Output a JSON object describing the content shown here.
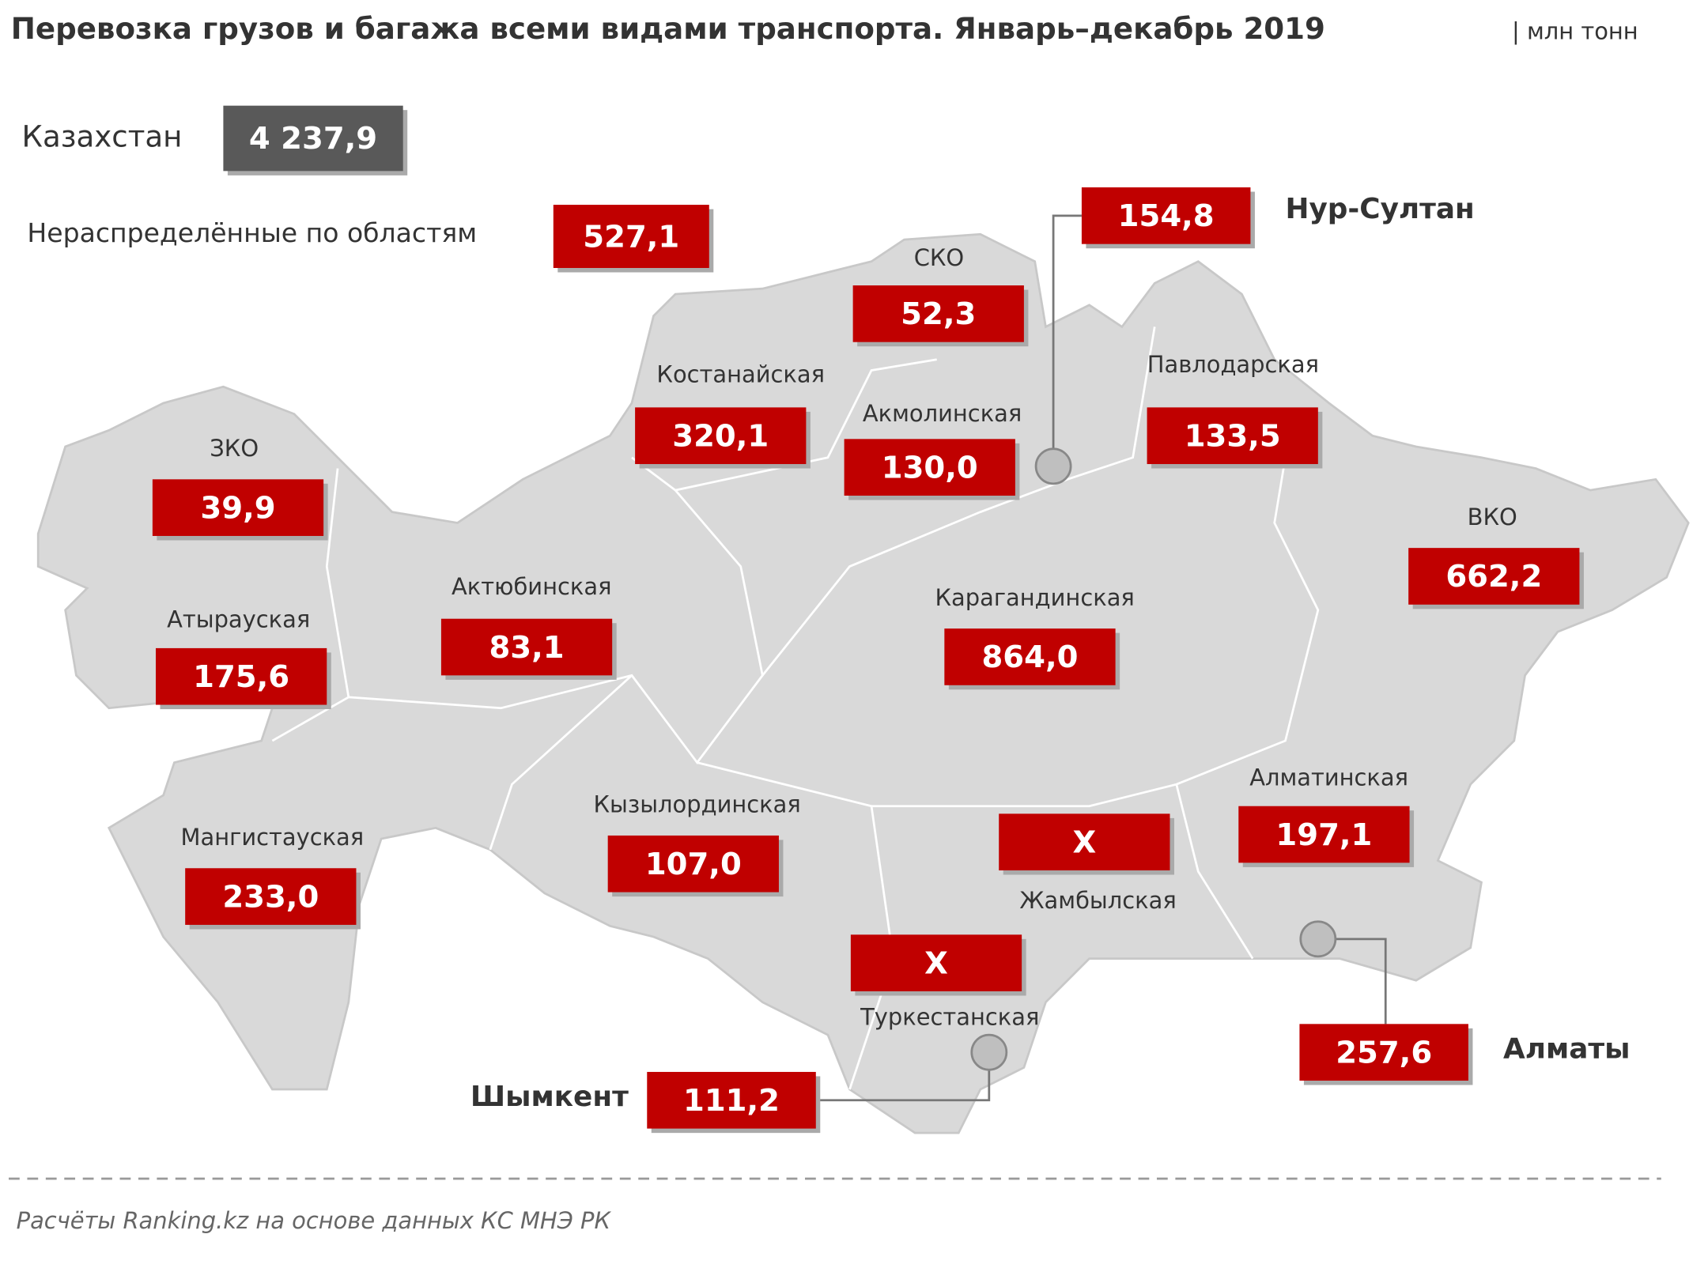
{
  "title": "Перевозка грузов и багажа всеми видами транспорта. Январь–декабрь 2019",
  "unit": "| млн тонн",
  "total": {
    "label": "Казахстан",
    "value": "4 237,9"
  },
  "unallocated": {
    "label": "Нераспределённые по областям",
    "value": "527,1"
  },
  "regions": [
    {
      "name": "СКО",
      "value": "52,3"
    },
    {
      "name": "Костанайская",
      "value": "320,1"
    },
    {
      "name": "Акмолинская",
      "value": "130,0"
    },
    {
      "name": "Павлодарская",
      "value": "133,5"
    },
    {
      "name": "ЗКО",
      "value": "39,9"
    },
    {
      "name": "ВКО",
      "value": "662,2"
    },
    {
      "name": "Атырауская",
      "value": "175,6"
    },
    {
      "name": "Актюбинская",
      "value": "83,1"
    },
    {
      "name": "Карагандинская",
      "value": "864,0"
    },
    {
      "name": "Алматинская",
      "value": "197,1"
    },
    {
      "name": "Кызылординская",
      "value": "107,0"
    },
    {
      "name": "Мангистауская",
      "value": "233,0"
    },
    {
      "name": "Жамбылская",
      "value": "X"
    },
    {
      "name": "Туркестанская",
      "value": "X"
    }
  ],
  "cities": [
    {
      "name": "Нур-Султан",
      "value": "154,8"
    },
    {
      "name": "Алматы",
      "value": "257,6"
    },
    {
      "name": "Шымкент",
      "value": "111,2"
    }
  ],
  "source": "Расчёты Ranking.kz на основе данных КС МНЭ РК"
}
